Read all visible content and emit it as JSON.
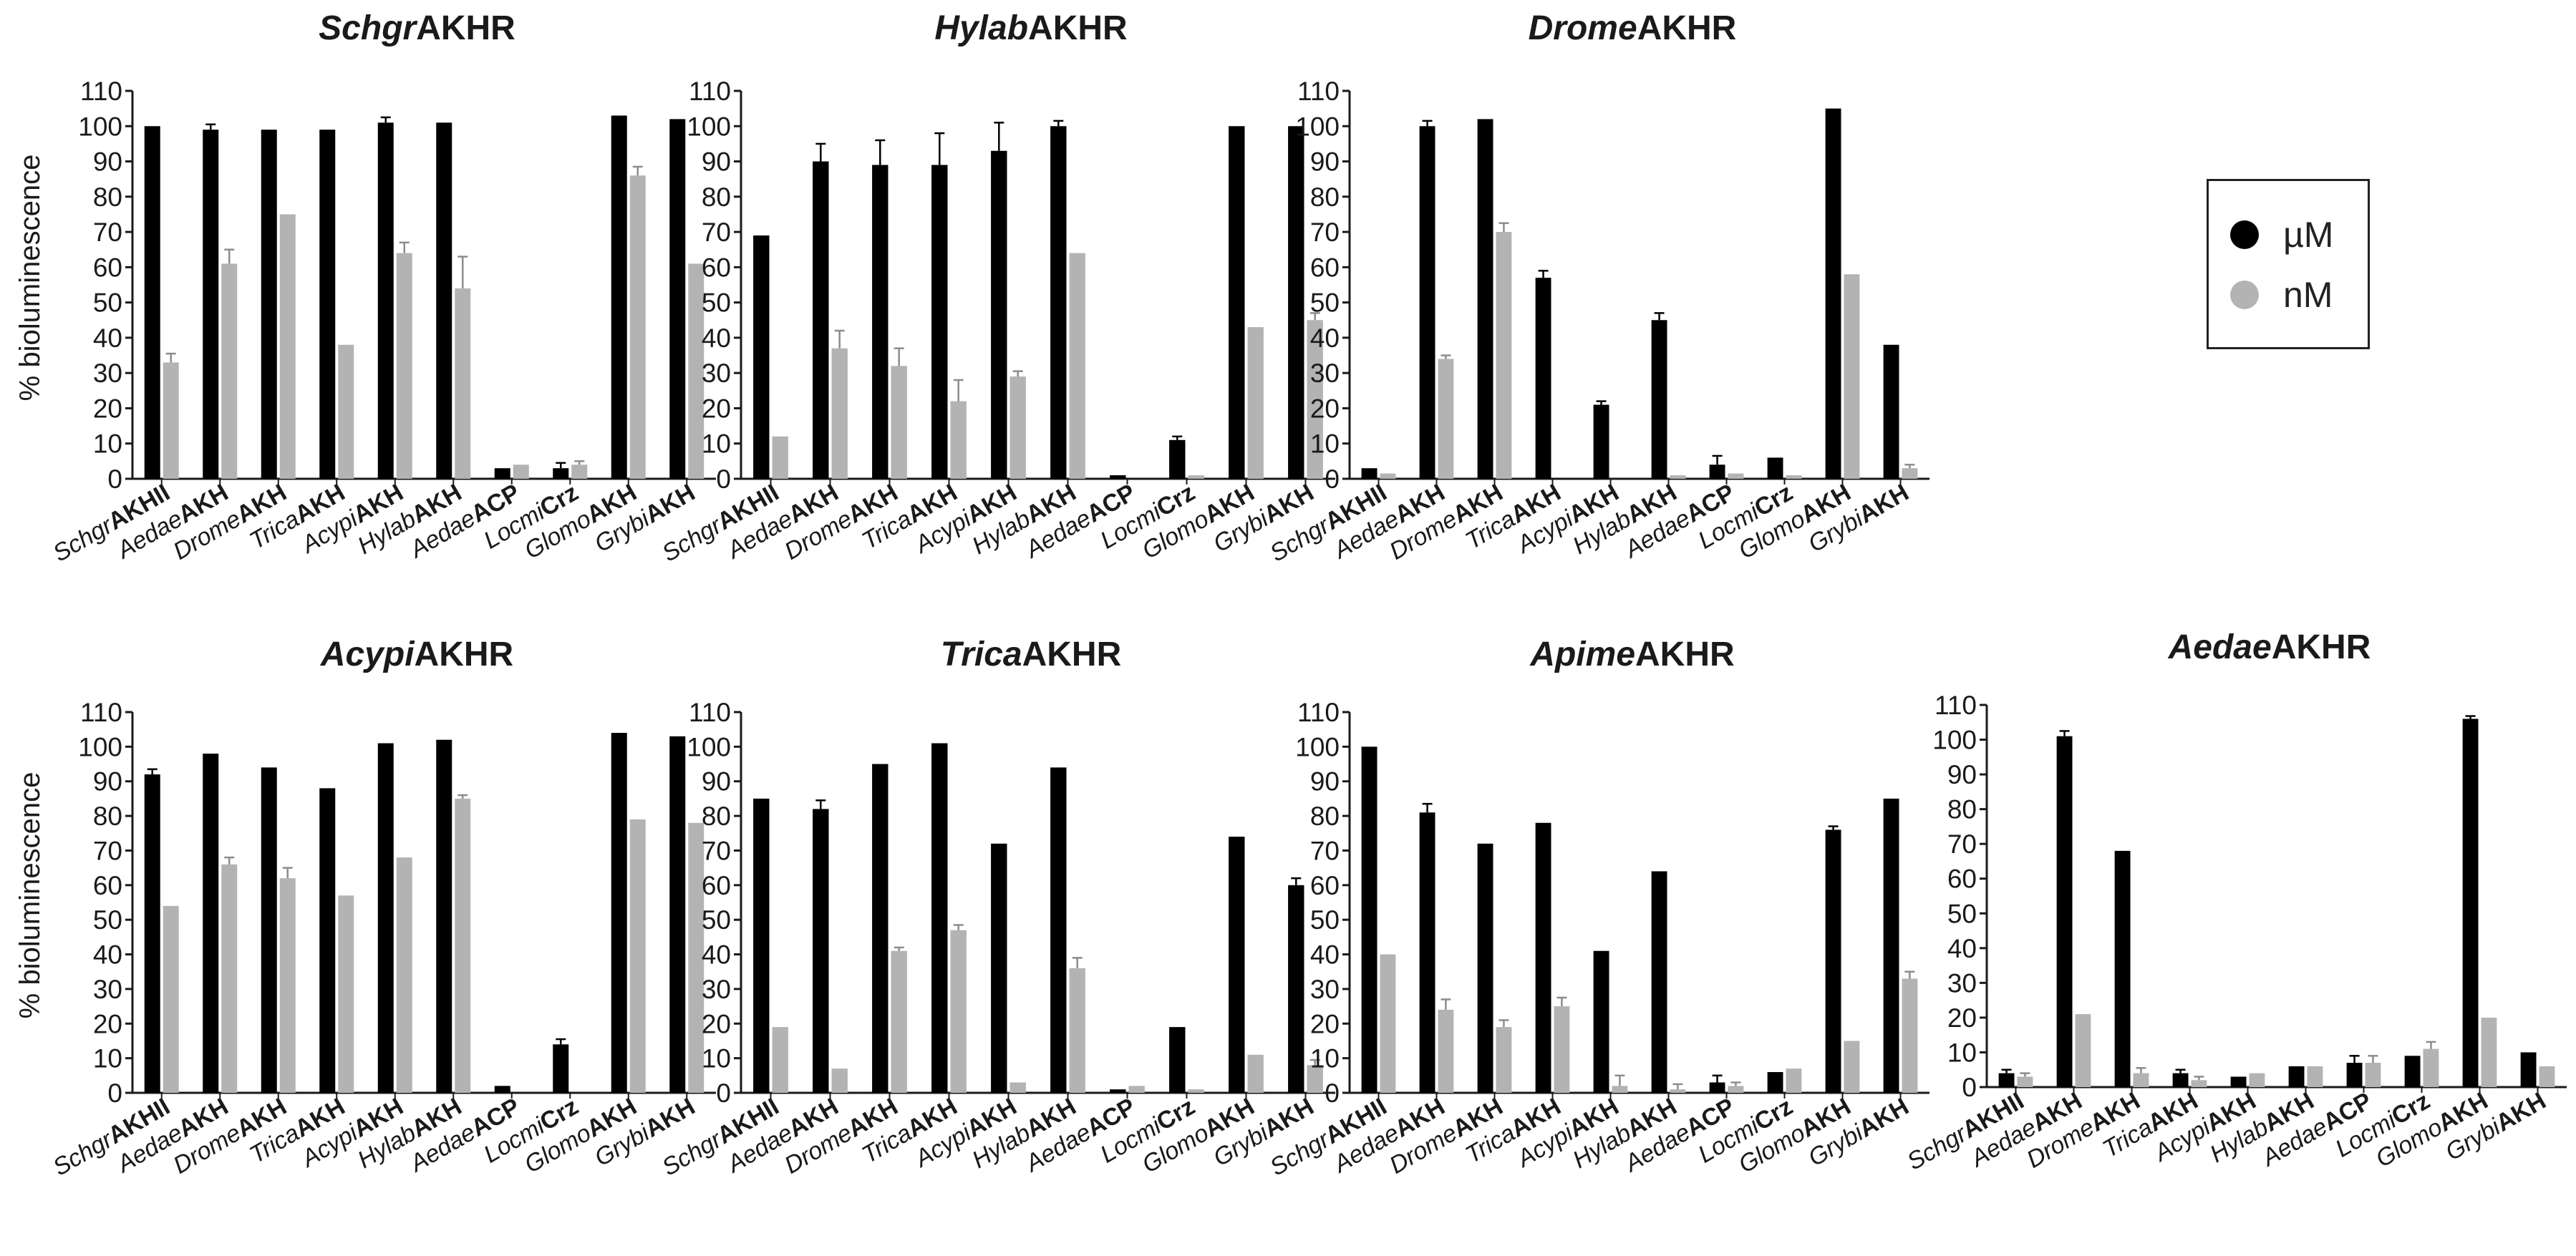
{
  "legend": {
    "series": [
      {
        "label": "µM",
        "color": "#000000"
      },
      {
        "label": "nM",
        "color": "#b3b3b3"
      }
    ]
  },
  "ylabel": "% bioluminescence",
  "yticks": [
    "0",
    "10",
    "20",
    "30",
    "40",
    "50",
    "60",
    "70",
    "80",
    "90",
    "100",
    "110"
  ],
  "chart_data": [
    {
      "type": "bar",
      "title": {
        "italic": "Schgr",
        "bold": "AKHR"
      },
      "ylabel": "% bioluminescence",
      "ylim": [
        0,
        110
      ],
      "categories": [
        [
          "Schgr",
          "AKHII"
        ],
        [
          "Aedae",
          "AKH"
        ],
        [
          "Drome",
          "AKH"
        ],
        [
          "Trica",
          "AKH"
        ],
        [
          "Acypi",
          "AKH"
        ],
        [
          "Hylab",
          "AKH"
        ],
        [
          "Aedae",
          "ACP"
        ],
        [
          "Locmi",
          "Crz"
        ],
        [
          "Glomo",
          "AKH"
        ],
        [
          "Grybi",
          "AKH"
        ]
      ],
      "series": [
        {
          "name": "µM",
          "values": [
            100,
            99,
            99,
            99,
            101,
            101,
            3,
            3,
            103,
            102
          ],
          "errors": [
            0,
            1.5,
            0,
            0,
            1.5,
            0,
            0,
            1.5,
            0,
            0
          ]
        },
        {
          "name": "nM",
          "values": [
            33,
            61,
            75,
            38,
            64,
            54,
            4,
            4,
            86,
            61
          ],
          "errors": [
            2.5,
            4,
            0,
            0,
            3,
            9,
            0,
            1,
            2.5,
            0
          ]
        }
      ]
    },
    {
      "type": "bar",
      "title": {
        "italic": "Hylab",
        "bold": "AKHR"
      },
      "ylabel": "",
      "ylim": [
        0,
        110
      ],
      "categories": [
        [
          "Schgr",
          "AKHII"
        ],
        [
          "Aedae",
          "AKH"
        ],
        [
          "Drome",
          "AKH"
        ],
        [
          "Trica",
          "AKH"
        ],
        [
          "Acypi",
          "AKH"
        ],
        [
          "Hylab",
          "AKH"
        ],
        [
          "Aedae",
          "ACP"
        ],
        [
          "Locmi",
          "Crz"
        ],
        [
          "Glomo",
          "AKH"
        ],
        [
          "Grybi",
          "AKH"
        ]
      ],
      "series": [
        {
          "name": "µM",
          "values": [
            69,
            90,
            89,
            89,
            93,
            100,
            1,
            11,
            100,
            100
          ],
          "errors": [
            0,
            5,
            7,
            9,
            8,
            1.5,
            0,
            1,
            0,
            0
          ]
        },
        {
          "name": "nM",
          "values": [
            12,
            37,
            32,
            22,
            29,
            64,
            0,
            1,
            43,
            45
          ],
          "errors": [
            0,
            5,
            5,
            6,
            1.5,
            0,
            0,
            0,
            0,
            2
          ]
        }
      ]
    },
    {
      "type": "bar",
      "title": {
        "italic": "Drome",
        "bold": "AKHR"
      },
      "ylabel": "",
      "ylim": [
        0,
        110
      ],
      "categories": [
        [
          "Schgr",
          "AKHII"
        ],
        [
          "Aedae",
          "AKH"
        ],
        [
          "Drome",
          "AKH"
        ],
        [
          "Trica",
          "AKH"
        ],
        [
          "Acypi",
          "AKH"
        ],
        [
          "Hylab",
          "AKH"
        ],
        [
          "Aedae",
          "ACP"
        ],
        [
          "Locmi",
          "Crz"
        ],
        [
          "Glomo",
          "AKH"
        ],
        [
          "Grybi",
          "AKH"
        ]
      ],
      "series": [
        {
          "name": "µM",
          "values": [
            3,
            100,
            102,
            57,
            21,
            45,
            4,
            6,
            105,
            38
          ],
          "errors": [
            0,
            1.5,
            0,
            2,
            1,
            2,
            2.5,
            0,
            0,
            0
          ]
        },
        {
          "name": "nM",
          "values": [
            1.5,
            34,
            70,
            0,
            0,
            1,
            1.5,
            1,
            58,
            3
          ],
          "errors": [
            0,
            1,
            2.5,
            0,
            0,
            0,
            0,
            0,
            0,
            1
          ]
        }
      ]
    },
    {
      "type": "bar",
      "title": {
        "italic": "Acypi",
        "bold": "AKHR"
      },
      "ylabel": "% bioluminescence",
      "ylim": [
        0,
        110
      ],
      "categories": [
        [
          "Schgr",
          "AKHII"
        ],
        [
          "Aedae",
          "AKH"
        ],
        [
          "Drome",
          "AKH"
        ],
        [
          "Trica",
          "AKH"
        ],
        [
          "Acypi",
          "AKH"
        ],
        [
          "Hylab",
          "AKH"
        ],
        [
          "Aedae",
          "ACP"
        ],
        [
          "Locmi",
          "Crz"
        ],
        [
          "Glomo",
          "AKH"
        ],
        [
          "Grybi",
          "AKH"
        ]
      ],
      "series": [
        {
          "name": "µM",
          "values": [
            92,
            98,
            94,
            88,
            101,
            102,
            2,
            14,
            104,
            103
          ],
          "errors": [
            1.5,
            0,
            0,
            0,
            0,
            0,
            0,
            1.5,
            0,
            0
          ]
        },
        {
          "name": "nM",
          "values": [
            54,
            66,
            62,
            57,
            68,
            85,
            0,
            0,
            79,
            78
          ],
          "errors": [
            0,
            2,
            3,
            0,
            0,
            1,
            0,
            0,
            0,
            0
          ]
        }
      ]
    },
    {
      "type": "bar",
      "title": {
        "italic": "Trica",
        "bold": "AKHR"
      },
      "ylabel": "",
      "ylim": [
        0,
        110
      ],
      "categories": [
        [
          "Schgr",
          "AKHII"
        ],
        [
          "Aedae",
          "AKH"
        ],
        [
          "Drome",
          "AKH"
        ],
        [
          "Trica",
          "AKH"
        ],
        [
          "Acypi",
          "AKH"
        ],
        [
          "Hylab",
          "AKH"
        ],
        [
          "Aedae",
          "ACP"
        ],
        [
          "Locmi",
          "Crz"
        ],
        [
          "Glomo",
          "AKH"
        ],
        [
          "Grybi",
          "AKH"
        ]
      ],
      "series": [
        {
          "name": "µM",
          "values": [
            85,
            82,
            95,
            101,
            72,
            94,
            1,
            19,
            74,
            60
          ],
          "errors": [
            0,
            2.5,
            0,
            0,
            0,
            0,
            0,
            0,
            0,
            2
          ]
        },
        {
          "name": "nM",
          "values": [
            19,
            7,
            41,
            47,
            3,
            36,
            2,
            1,
            11,
            8
          ],
          "errors": [
            0,
            0,
            1,
            1.5,
            0,
            3,
            0,
            0,
            0,
            1.5
          ]
        }
      ]
    },
    {
      "type": "bar",
      "title": {
        "italic": "Apime",
        "bold": "AKHR"
      },
      "ylabel": "",
      "ylim": [
        0,
        110
      ],
      "categories": [
        [
          "Schgr",
          "AKHII"
        ],
        [
          "Aedae",
          "AKH"
        ],
        [
          "Drome",
          "AKH"
        ],
        [
          "Trica",
          "AKH"
        ],
        [
          "Acypi",
          "AKH"
        ],
        [
          "Hylab",
          "AKH"
        ],
        [
          "Aedae",
          "ACP"
        ],
        [
          "Locmi",
          "Crz"
        ],
        [
          "Glomo",
          "AKH"
        ],
        [
          "Grybi",
          "AKH"
        ]
      ],
      "series": [
        {
          "name": "µM",
          "values": [
            100,
            81,
            72,
            78,
            41,
            64,
            3,
            6,
            76,
            85
          ],
          "errors": [
            0,
            2.5,
            0,
            0,
            0,
            0,
            2,
            0,
            1,
            0
          ]
        },
        {
          "name": "nM",
          "values": [
            40,
            24,
            19,
            25,
            2,
            1,
            2,
            7,
            15,
            33
          ],
          "errors": [
            0,
            3,
            2,
            2.5,
            3,
            1.5,
            1,
            0,
            0,
            2
          ]
        }
      ]
    },
    {
      "type": "bar",
      "title": {
        "italic": "Aedae",
        "bold": "AKHR"
      },
      "ylabel": "",
      "ylim": [
        0,
        110
      ],
      "categories": [
        [
          "Schgr",
          "AKHII"
        ],
        [
          "Aedae",
          "AKH"
        ],
        [
          "Drome",
          "AKH"
        ],
        [
          "Trica",
          "AKH"
        ],
        [
          "Acypi",
          "AKH"
        ],
        [
          "Hylab",
          "AKH"
        ],
        [
          "Aedae",
          "ACP"
        ],
        [
          "Locmi",
          "Crz"
        ],
        [
          "Glomo",
          "AKH"
        ],
        [
          "Grybi",
          "AKH"
        ]
      ],
      "series": [
        {
          "name": "µM",
          "values": [
            4,
            101,
            68,
            4,
            3,
            6,
            7,
            9,
            106,
            10
          ],
          "errors": [
            1,
            1.5,
            0,
            1,
            0,
            0,
            2,
            0,
            0.8,
            0
          ]
        },
        {
          "name": "nM",
          "values": [
            3,
            21,
            4,
            2,
            4,
            6,
            7,
            11,
            20,
            6
          ],
          "errors": [
            1,
            0,
            1.5,
            1,
            0,
            0,
            2,
            2,
            0,
            0
          ]
        }
      ]
    }
  ]
}
